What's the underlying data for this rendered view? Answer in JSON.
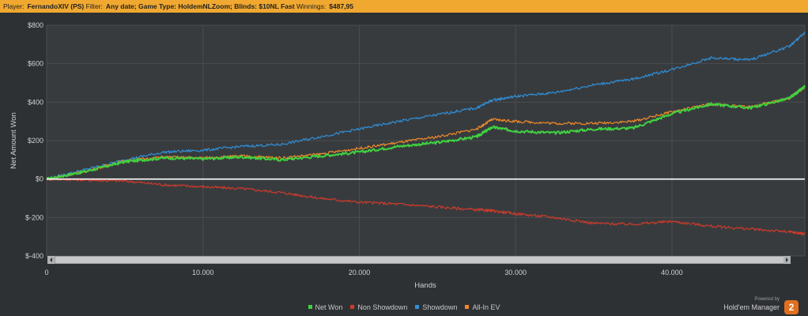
{
  "header": {
    "player_label": "Player:",
    "player_value": "FernandoXIV (PS)",
    "filter_label": "Filter:",
    "filter_value": "Any date; Game Type: HoldemNLZoom; Blinds: $10NL Fast",
    "winnings_label": "Winnings:",
    "winnings_value": "$487,95"
  },
  "legend": [
    {
      "label": "Net Won",
      "color": "#3fd23f"
    },
    {
      "label": "Non Showdown",
      "color": "#d03a2a"
    },
    {
      "label": "Showdown",
      "color": "#2f8fd8"
    },
    {
      "label": "All-In EV",
      "color": "#f08a28"
    }
  ],
  "brand": {
    "powered_by": "Powered by",
    "name": "Hold'em Manager",
    "logo_text": "2"
  },
  "chart_data": {
    "type": "line",
    "xlabel": "Hands",
    "ylabel": "Net Amount Won",
    "xlim": [
      0,
      48500
    ],
    "ylim": [
      -400,
      800
    ],
    "x_ticks": [
      0,
      10000,
      20000,
      30000,
      40000
    ],
    "x_tick_labels": [
      "0",
      "10.000",
      "20.000",
      "30.000",
      "40.000"
    ],
    "y_ticks": [
      -400,
      -200,
      0,
      200,
      400,
      600,
      800
    ],
    "y_tick_labels": [
      "$-400",
      "$-200",
      "$0",
      "$200",
      "$400",
      "$600",
      "$800"
    ],
    "grid": true,
    "legend_position": "bottom",
    "x": [
      0,
      2500,
      5000,
      7500,
      10000,
      12500,
      15000,
      17500,
      20000,
      22500,
      25000,
      27500,
      28500,
      30000,
      32500,
      35000,
      37500,
      40000,
      42500,
      45000,
      47500,
      48500
    ],
    "series": [
      {
        "name": "Net Won",
        "color": "#3fd23f",
        "values": [
          0,
          40,
          90,
          110,
          105,
          115,
          100,
          120,
          140,
          170,
          190,
          220,
          270,
          250,
          240,
          260,
          265,
          340,
          390,
          370,
          420,
          480
        ]
      },
      {
        "name": "Non Showdown",
        "color": "#d03a2a",
        "values": [
          0,
          -5,
          -10,
          -30,
          -40,
          -50,
          -70,
          -100,
          -120,
          -130,
          -145,
          -160,
          -165,
          -180,
          -200,
          -230,
          -235,
          -220,
          -245,
          -260,
          -275,
          -285
        ]
      },
      {
        "name": "Showdown",
        "color": "#2f8fd8",
        "values": [
          0,
          50,
          100,
          140,
          150,
          170,
          180,
          220,
          260,
          300,
          335,
          370,
          410,
          430,
          450,
          490,
          520,
          570,
          630,
          620,
          690,
          760
        ]
      },
      {
        "name": "All-In EV",
        "color": "#f08a28",
        "values": [
          0,
          40,
          95,
          115,
          110,
          120,
          110,
          130,
          160,
          190,
          220,
          260,
          310,
          300,
          290,
          290,
          300,
          350,
          390,
          375,
          420,
          480
        ]
      }
    ]
  }
}
